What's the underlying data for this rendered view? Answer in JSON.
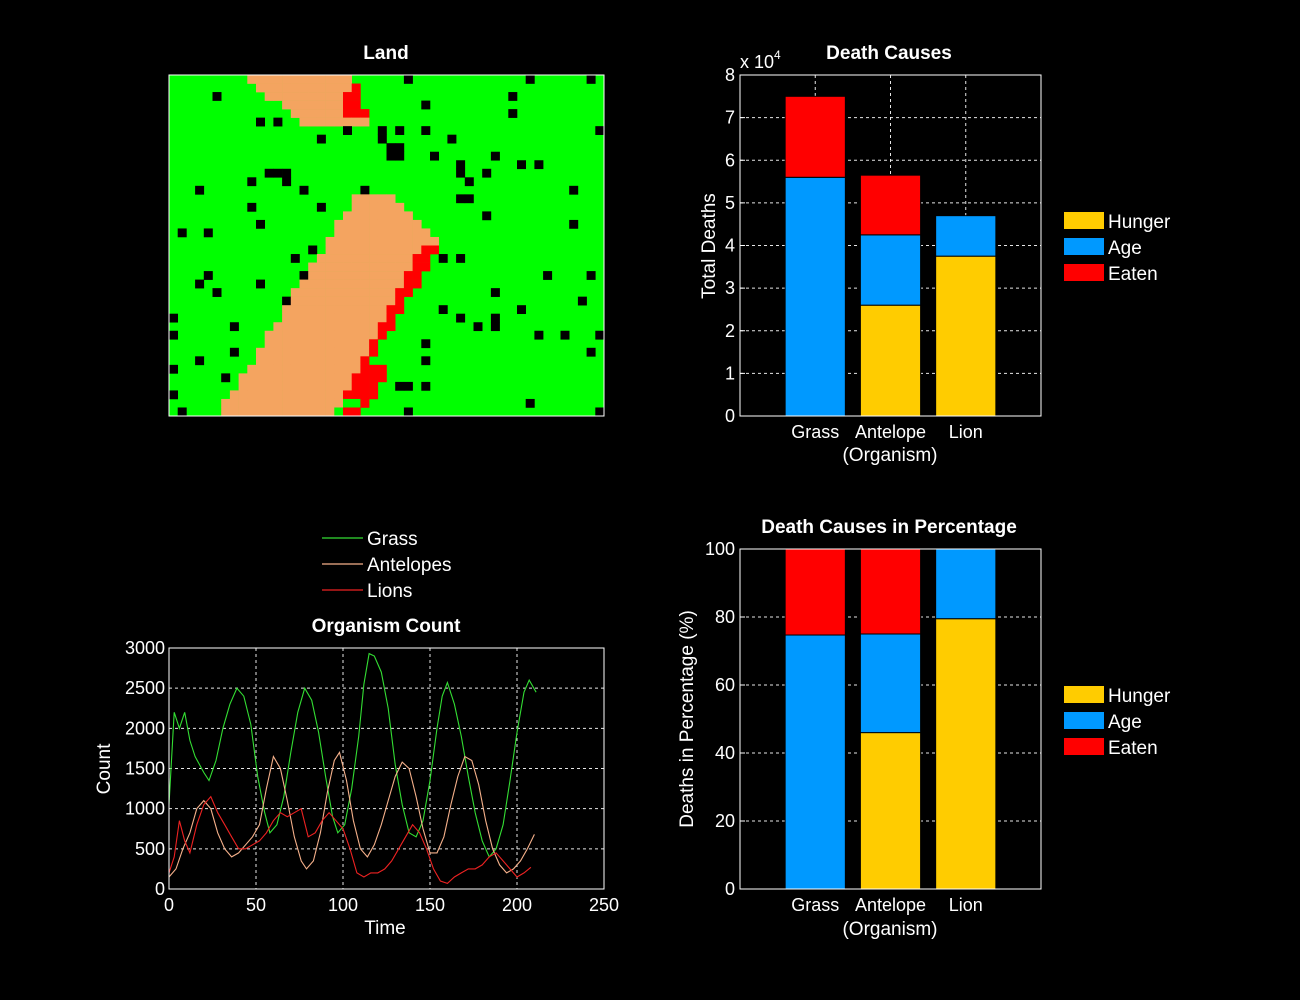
{
  "colors": {
    "grass_land": "#00ff00",
    "antelope_land": "#f4a460",
    "lion_land": "#ff0000",
    "empty_land": "#000000",
    "hunger": "#ffcc00",
    "age": "#0099ff",
    "eaten": "#ff0000",
    "grass_line": "#33dd33",
    "antelope_line": "#f5b08a",
    "lion_line": "#ee2222",
    "grid": "#ffffff",
    "background": "#000000"
  },
  "chart_data": [
    {
      "id": "land",
      "type": "heatmap",
      "title": "Land",
      "legend_note": "cell classes",
      "classes": [
        "grass",
        "antelope",
        "lion",
        "empty"
      ],
      "grid_size": [
        50,
        40
      ],
      "grid": false
    },
    {
      "id": "death_causes",
      "type": "bar",
      "stacked": true,
      "title": "Death Causes",
      "xlabel": "(Organism)",
      "ylabel": "Total Deaths",
      "multiplier": "x 10",
      "multiplier_exp": "4",
      "categories": [
        "Grass",
        "Antelope",
        "Lion"
      ],
      "ylim": [
        0,
        8
      ],
      "yticks": [
        "0",
        "1",
        "2",
        "3",
        "4",
        "5",
        "6",
        "7",
        "8"
      ],
      "series": [
        {
          "name": "Hunger",
          "values": [
            0,
            2.6,
            3.75
          ]
        },
        {
          "name": "Age",
          "values": [
            5.6,
            1.65,
            0.95
          ]
        },
        {
          "name": "Eaten",
          "values": [
            1.9,
            1.4,
            0
          ]
        }
      ],
      "grid": true,
      "legend_position": "right"
    },
    {
      "id": "organism_count",
      "type": "line",
      "title": "Organism Count",
      "xlabel": "Time",
      "ylabel": "Count",
      "xlim": [
        0,
        250
      ],
      "ylim": [
        0,
        3000
      ],
      "xticks": [
        "0",
        "50",
        "100",
        "150",
        "200",
        "250"
      ],
      "yticks": [
        "0",
        "500",
        "1000",
        "1500",
        "2000",
        "2500",
        "3000"
      ],
      "grid": true,
      "legend_position": "top",
      "series": [
        {
          "name": "Grass",
          "points": [
            [
              0,
              1050
            ],
            [
              3,
              2200
            ],
            [
              6,
              2000
            ],
            [
              9,
              2200
            ],
            [
              12,
              1850
            ],
            [
              15,
              1650
            ],
            [
              20,
              1450
            ],
            [
              23,
              1350
            ],
            [
              27,
              1600
            ],
            [
              31,
              2000
            ],
            [
              35,
              2300
            ],
            [
              39,
              2500
            ],
            [
              43,
              2400
            ],
            [
              47,
              2050
            ],
            [
              51,
              1400
            ],
            [
              55,
              950
            ],
            [
              58,
              700
            ],
            [
              62,
              800
            ],
            [
              66,
              1150
            ],
            [
              70,
              1700
            ],
            [
              74,
              2200
            ],
            [
              78,
              2500
            ],
            [
              82,
              2350
            ],
            [
              86,
              1950
            ],
            [
              90,
              1400
            ],
            [
              94,
              900
            ],
            [
              97,
              700
            ],
            [
              101,
              800
            ],
            [
              105,
              1250
            ],
            [
              109,
              1900
            ],
            [
              112,
              2550
            ],
            [
              115,
              2930
            ],
            [
              118,
              2900
            ],
            [
              122,
              2700
            ],
            [
              126,
              2250
            ],
            [
              130,
              1550
            ],
            [
              134,
              1050
            ],
            [
              138,
              700
            ],
            [
              142,
              650
            ],
            [
              146,
              850
            ],
            [
              150,
              1350
            ],
            [
              154,
              2000
            ],
            [
              157,
              2400
            ],
            [
              160,
              2570
            ],
            [
              164,
              2300
            ],
            [
              168,
              1900
            ],
            [
              172,
              1400
            ],
            [
              176,
              950
            ],
            [
              180,
              600
            ],
            [
              184,
              400
            ],
            [
              188,
              500
            ],
            [
              192,
              800
            ],
            [
              196,
              1350
            ],
            [
              200,
              1950
            ],
            [
              204,
              2450
            ],
            [
              207,
              2600
            ],
            [
              211,
              2450
            ]
          ]
        },
        {
          "name": "Antelopes",
          "points": [
            [
              0,
              150
            ],
            [
              4,
              250
            ],
            [
              8,
              500
            ],
            [
              12,
              700
            ],
            [
              16,
              1000
            ],
            [
              20,
              1100
            ],
            [
              24,
              1000
            ],
            [
              28,
              700
            ],
            [
              32,
              500
            ],
            [
              36,
              400
            ],
            [
              40,
              450
            ],
            [
              44,
              550
            ],
            [
              48,
              650
            ],
            [
              52,
              800
            ],
            [
              56,
              1250
            ],
            [
              60,
              1650
            ],
            [
              64,
              1500
            ],
            [
              68,
              1100
            ],
            [
              72,
              650
            ],
            [
              76,
              350
            ],
            [
              79,
              250
            ],
            [
              83,
              350
            ],
            [
              87,
              700
            ],
            [
              91,
              1200
            ],
            [
              95,
              1600
            ],
            [
              98,
              1700
            ],
            [
              102,
              1350
            ],
            [
              106,
              850
            ],
            [
              110,
              500
            ],
            [
              114,
              400
            ],
            [
              118,
              550
            ],
            [
              122,
              800
            ],
            [
              126,
              1100
            ],
            [
              130,
              1400
            ],
            [
              134,
              1580
            ],
            [
              138,
              1500
            ],
            [
              142,
              1150
            ],
            [
              146,
              750
            ],
            [
              150,
              450
            ],
            [
              154,
              450
            ],
            [
              158,
              650
            ],
            [
              162,
              1050
            ],
            [
              166,
              1400
            ],
            [
              170,
              1650
            ],
            [
              174,
              1600
            ],
            [
              178,
              1300
            ],
            [
              182,
              850
            ],
            [
              186,
              500
            ],
            [
              190,
              300
            ],
            [
              194,
              200
            ],
            [
              198,
              250
            ],
            [
              202,
              350
            ],
            [
              206,
              500
            ],
            [
              210,
              680
            ]
          ]
        },
        {
          "name": "Lions",
          "points": [
            [
              0,
              200
            ],
            [
              3,
              400
            ],
            [
              6,
              850
            ],
            [
              9,
              600
            ],
            [
              12,
              450
            ],
            [
              16,
              800
            ],
            [
              20,
              1050
            ],
            [
              24,
              1150
            ],
            [
              28,
              950
            ],
            [
              32,
              800
            ],
            [
              36,
              650
            ],
            [
              40,
              500
            ],
            [
              44,
              500
            ],
            [
              48,
              550
            ],
            [
              52,
              600
            ],
            [
              56,
              700
            ],
            [
              60,
              850
            ],
            [
              64,
              950
            ],
            [
              68,
              900
            ],
            [
              72,
              950
            ],
            [
              76,
              1000
            ],
            [
              80,
              650
            ],
            [
              84,
              700
            ],
            [
              88,
              850
            ],
            [
              92,
              950
            ],
            [
              96,
              850
            ],
            [
              100,
              750
            ],
            [
              104,
              500
            ],
            [
              108,
              200
            ],
            [
              112,
              150
            ],
            [
              116,
              200
            ],
            [
              120,
              200
            ],
            [
              124,
              250
            ],
            [
              128,
              350
            ],
            [
              132,
              500
            ],
            [
              136,
              650
            ],
            [
              140,
              800
            ],
            [
              144,
              700
            ],
            [
              148,
              500
            ],
            [
              152,
              250
            ],
            [
              156,
              100
            ],
            [
              160,
              70
            ],
            [
              164,
              150
            ],
            [
              168,
              200
            ],
            [
              172,
              250
            ],
            [
              176,
              250
            ],
            [
              180,
              300
            ],
            [
              184,
              400
            ],
            [
              188,
              450
            ],
            [
              192,
              350
            ],
            [
              196,
              250
            ],
            [
              200,
              150
            ],
            [
              204,
              200
            ],
            [
              208,
              270
            ]
          ]
        }
      ]
    },
    {
      "id": "death_percentage",
      "type": "bar",
      "stacked": true,
      "title": "Death Causes in Percentage",
      "xlabel": "(Organism)",
      "ylabel": "Deaths in Percentage (%)",
      "categories": [
        "Grass",
        "Antelope",
        "Lion"
      ],
      "ylim": [
        0,
        100
      ],
      "yticks": [
        "0",
        "20",
        "40",
        "60",
        "80",
        "100"
      ],
      "series": [
        {
          "name": "Hunger",
          "values": [
            0,
            46,
            79.5
          ]
        },
        {
          "name": "Age",
          "values": [
            74.7,
            29,
            20.5
          ]
        },
        {
          "name": "Eaten",
          "values": [
            25.3,
            25,
            0
          ]
        }
      ],
      "grid": true,
      "legend_position": "right"
    }
  ]
}
